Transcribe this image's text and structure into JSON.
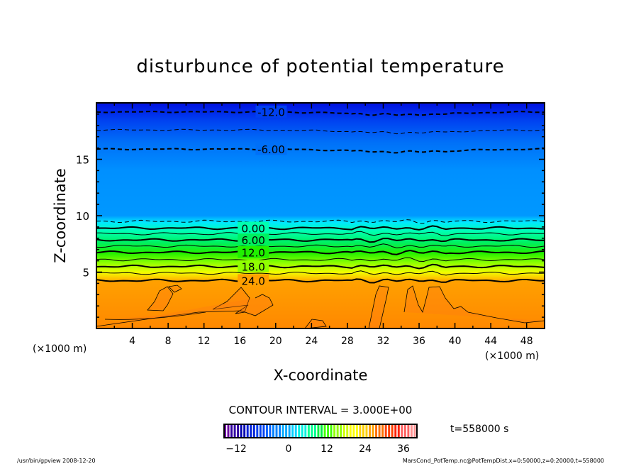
{
  "chart_data": {
    "type": "heatmap",
    "subtype": "filled-contour",
    "title": "disturbunce of potential temperature",
    "xlabel": "X-coordinate",
    "ylabel": "Z-coordinate",
    "x_unit_label": "(×1000 m)",
    "x_unit_label_right": "(×1000 m)",
    "xlim": [
      0,
      50
    ],
    "ylim": [
      0,
      20
    ],
    "xticks": [
      4,
      8,
      12,
      16,
      20,
      24,
      28,
      32,
      36,
      40,
      44,
      48
    ],
    "yticks": [
      5,
      10,
      15
    ],
    "contour_interval_text": "CONTOUR INTERVAL = 3.000E+00",
    "time_text": "t=558000 s",
    "contours": [
      {
        "level": -12,
        "label": "-12.0",
        "z": 19.2,
        "labeled": true
      },
      {
        "level": -9,
        "label": "",
        "z": 17.6,
        "labeled": false
      },
      {
        "level": -6,
        "label": "-6.00",
        "z": 15.9,
        "labeled": true
      },
      {
        "level": -3,
        "label": "",
        "z": 9.5,
        "labeled": false
      },
      {
        "level": 0,
        "label": "0.00",
        "z": 8.9,
        "labeled": true
      },
      {
        "level": 3,
        "label": "",
        "z": 8.4,
        "labeled": false
      },
      {
        "level": 6,
        "label": "6.00",
        "z": 7.85,
        "labeled": true
      },
      {
        "level": 9,
        "label": "",
        "z": 7.3,
        "labeled": false
      },
      {
        "level": 12,
        "label": "12.0",
        "z": 6.75,
        "labeled": true
      },
      {
        "level": 15,
        "label": "",
        "z": 6.1,
        "labeled": false
      },
      {
        "level": 18,
        "label": "18.0",
        "z": 5.5,
        "labeled": true
      },
      {
        "level": 21,
        "label": "",
        "z": 4.9,
        "labeled": false
      },
      {
        "level": 24,
        "label": "24.0",
        "z": 4.25,
        "labeled": true
      }
    ],
    "fill_profile": [
      {
        "z": 20,
        "color": "#0010e0"
      },
      {
        "z": 18.5,
        "color": "#0040f0"
      },
      {
        "z": 16.5,
        "color": "#0070f8"
      },
      {
        "z": 14,
        "color": "#0090ff"
      },
      {
        "z": 10,
        "color": "#0098ff"
      },
      {
        "z": 9.4,
        "color": "#00e8ff"
      },
      {
        "z": 8.6,
        "color": "#00ffb0"
      },
      {
        "z": 7.6,
        "color": "#00f060"
      },
      {
        "z": 6.7,
        "color": "#20f000"
      },
      {
        "z": 5.8,
        "color": "#90ff00"
      },
      {
        "z": 5.0,
        "color": "#f0ff00"
      },
      {
        "z": 4.4,
        "color": "#ffc000"
      },
      {
        "z": 4.2,
        "color": "#ffa000"
      },
      {
        "z": 0,
        "color": "#ff8800"
      }
    ],
    "colorbar": {
      "ticks": [
        "-12",
        "0",
        "12",
        "24",
        "36"
      ],
      "colors": [
        "#6a00a0",
        "#3000a0",
        "#0000b0",
        "#0020d8",
        "#0040f0",
        "#0060ff",
        "#0080ff",
        "#00a8ff",
        "#00d0ff",
        "#00f0e0",
        "#00ff90",
        "#00f040",
        "#40ff00",
        "#90ff00",
        "#d0ff00",
        "#ffff00",
        "#ffd000",
        "#ffa000",
        "#ff7000",
        "#ff4000",
        "#ff2000",
        "#ff6060",
        "#ff9090"
      ]
    }
  },
  "footer": {
    "left": "/usr/bin/gpview   2008-12-20",
    "right": "MarsCond_PotTemp.nc@PotTempDist,x=0:50000,z=0:20000,t=558000"
  }
}
